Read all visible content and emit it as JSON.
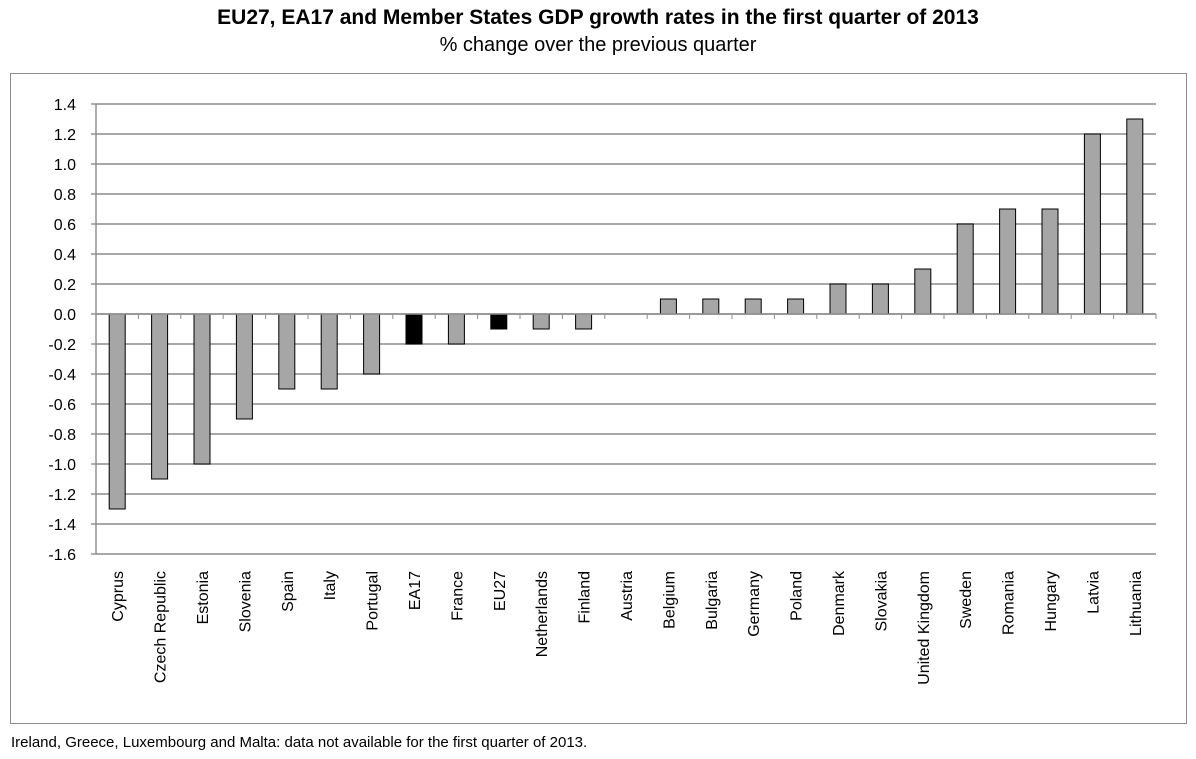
{
  "title": "EU27, EA17 and Member States GDP growth rates in the first quarter of 2013",
  "subtitle": "% change over the previous quarter",
  "footnote": "Ireland, Greece, Luxembourg and Malta: data not available for the first quarter of 2013.",
  "chart_data": {
    "type": "bar",
    "categories": [
      "Cyprus",
      "Czech Republic",
      "Estonia",
      "Slovenia",
      "Spain",
      "Italy",
      "Portugal",
      "EA17",
      "France",
      "EU27",
      "Netherlands",
      "Finland",
      "Austria",
      "Belgium",
      "Bulgaria",
      "Germany",
      "Poland",
      "Denmark",
      "Slovakia",
      "United Kingdom",
      "Sweden",
      "Romania",
      "Hungary",
      "Latvia",
      "Lithuania"
    ],
    "values": [
      -1.3,
      -1.1,
      -1.0,
      -0.7,
      -0.5,
      -0.5,
      -0.4,
      -0.2,
      -0.2,
      -0.1,
      -0.1,
      -0.1,
      0.0,
      0.1,
      0.1,
      0.1,
      0.1,
      0.2,
      0.2,
      0.3,
      0.6,
      0.7,
      0.7,
      1.2,
      1.3
    ],
    "highlight": [
      "EA17",
      "EU27"
    ],
    "colors": {
      "bar": "#a6a6a6",
      "highlight": "#000000",
      "grid": "#8c8c8c",
      "bar_outline": "#000000"
    },
    "yticks": [
      "1.4",
      "1.2",
      "1.0",
      "0.8",
      "0.6",
      "0.4",
      "0.2",
      "0.0",
      "-0.2",
      "-0.4",
      "-0.6",
      "-0.8",
      "-1.0",
      "-1.2",
      "-1.4",
      "-1.6"
    ],
    "ylim": [
      -1.6,
      1.4
    ],
    "ystep": 0.2,
    "grid": true,
    "legend": "none"
  }
}
